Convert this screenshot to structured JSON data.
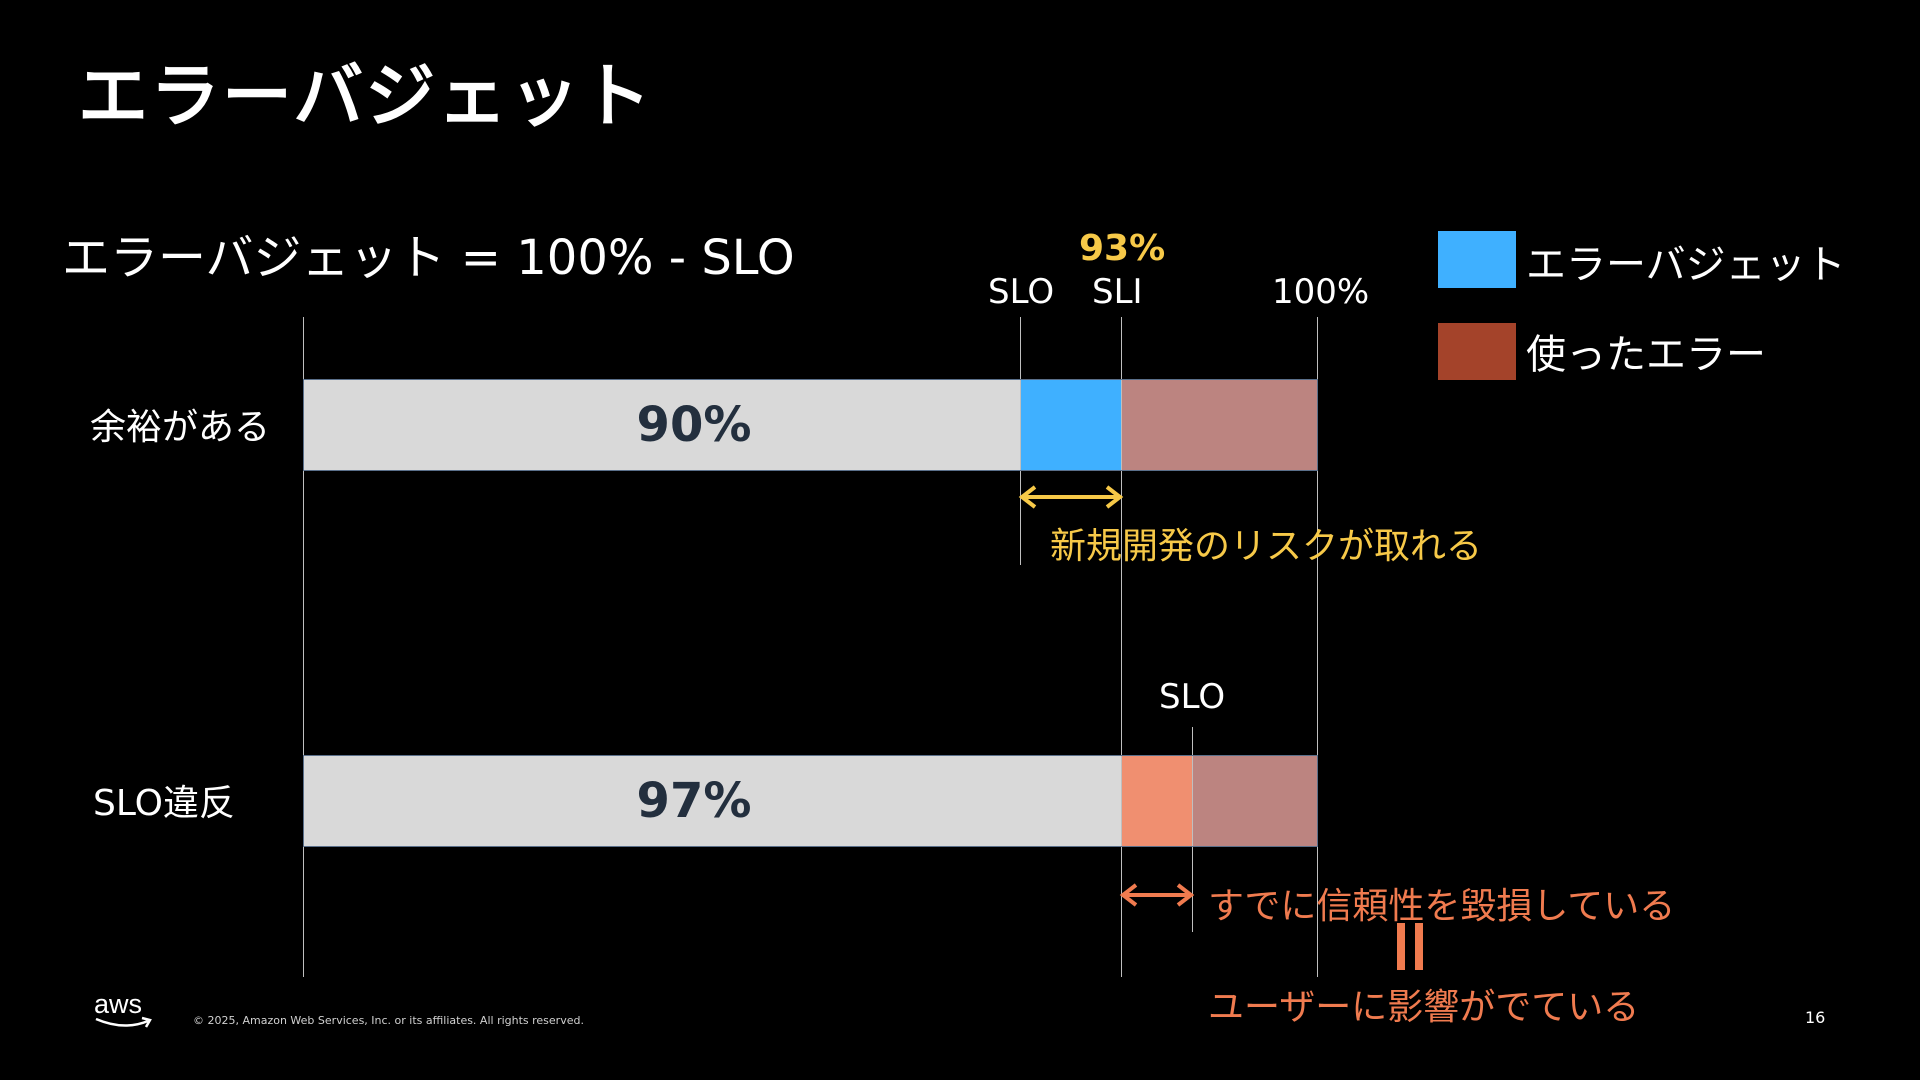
{
  "slide": {
    "title": "エラーバジェット",
    "formula": "エラーバジェット = 100% - SLO",
    "page_number": "16"
  },
  "legend": [
    {
      "label": "エラーバジェット",
      "color": "#3fb0ff"
    },
    {
      "label": "使ったエラー",
      "color": "#a4432a"
    }
  ],
  "markers": {
    "slo_top": "SLO",
    "sli_top": "SLI",
    "hundred": "100%",
    "sli_value": "93%",
    "slo_bottom": "SLO"
  },
  "rows": [
    {
      "label": "余裕がある",
      "slo_percent": "90%",
      "note": "新規開発のリスクが取れる"
    },
    {
      "label": "SLO違反",
      "slo_percent": "97%",
      "note": "すでに信頼性を毀損している",
      "equals_note": "ユーザーに影響がでている"
    }
  ],
  "colors": {
    "bar_base": "#d9d9d9",
    "budget_blue": "#3fb0ff",
    "used_error": "#bc8480",
    "violation_orange": "#f08f70",
    "note_yellow": "#f7c948",
    "note_orange": "#f07b4f"
  },
  "footer": {
    "logo_text": "aws",
    "copyright": "© 2025, Amazon Web Services, Inc. or its affiliates. All rights reserved."
  }
}
